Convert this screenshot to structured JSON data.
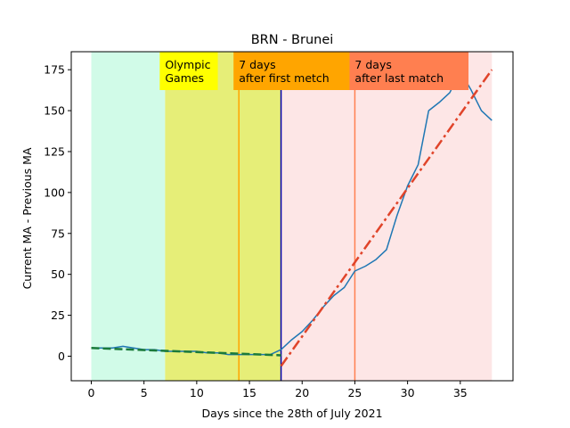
{
  "chart_data": {
    "type": "line",
    "title": "BRN - Brunei",
    "xlabel": "Days since the 28th of July 2021",
    "ylabel": "Current MA - Previous MA",
    "xlim": [
      -1.9,
      40.0
    ],
    "ylim": [
      -15,
      186
    ],
    "x_ticks": [
      0,
      5,
      10,
      15,
      20,
      25,
      30,
      35
    ],
    "y_ticks": [
      0,
      25,
      50,
      75,
      100,
      125,
      150,
      175
    ],
    "grid": false,
    "legend": "none",
    "shaded_regions": [
      {
        "x": [
          0,
          7
        ],
        "color": "#d1fbe8"
      },
      {
        "x": [
          7,
          18
        ],
        "color": "#e6ee78"
      },
      {
        "x": [
          18,
          38
        ],
        "color": "#fde6e6"
      }
    ],
    "vertical_lines": [
      {
        "x": 14,
        "color": "#ffa500"
      },
      {
        "x": 18,
        "color": "#0000aa"
      },
      {
        "x": 25,
        "color": "#ff7f50"
      }
    ],
    "annotations": [
      {
        "lines": [
          "Olympic",
          "Games"
        ],
        "x": 7,
        "color": "#ffff00"
      },
      {
        "lines": [
          "7 days",
          "after first metch"
        ],
        "x": 14,
        "color": "#ffa500"
      },
      {
        "lines": [
          "7 days",
          "after last match"
        ],
        "x": 25,
        "color": "#ff7f50"
      }
    ],
    "series": [
      {
        "style": "solid",
        "color": "#1f77b4",
        "x": [
          0,
          1,
          2,
          3,
          4,
          5,
          6,
          7,
          8,
          9,
          10,
          11,
          12,
          13,
          14,
          15,
          16,
          17,
          18,
          19,
          20,
          21,
          22,
          23,
          24,
          25,
          26,
          27,
          28,
          29,
          30,
          31,
          32,
          33,
          34,
          35,
          36,
          37,
          38
        ],
        "y": [
          5,
          5,
          5,
          6,
          5,
          4,
          4,
          3,
          3,
          3,
          3,
          2,
          2,
          1,
          1,
          1,
          1,
          1,
          4,
          10,
          15,
          22,
          30,
          37,
          42,
          52,
          55,
          59,
          65,
          86,
          104,
          117,
          150,
          155,
          161,
          174,
          163,
          150,
          144
        ]
      },
      {
        "style": "dashed",
        "color": "#1a7a3a",
        "x": [
          0,
          18
        ],
        "y": [
          5,
          0.5
        ]
      },
      {
        "style": "dashdot",
        "color": "#e0442a",
        "x": [
          18,
          38
        ],
        "y": [
          -6,
          175
        ]
      }
    ]
  }
}
